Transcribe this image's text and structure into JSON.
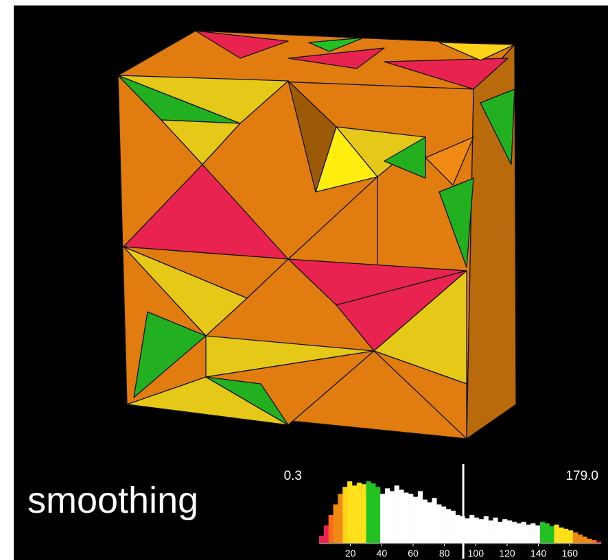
{
  "chart_data": {
    "type": "histogram",
    "annotation": "smoothing",
    "min_label": "0.3",
    "max_label": "179.0",
    "bins": [
      0,
      3,
      6,
      9,
      12,
      15,
      18,
      21,
      24,
      27,
      30,
      33,
      36,
      39,
      42,
      45,
      48,
      51,
      54,
      57,
      60,
      63,
      66,
      69,
      72,
      75,
      78,
      81,
      84,
      87,
      90,
      93,
      96,
      99,
      102,
      105,
      108,
      111,
      114,
      117,
      120,
      123,
      126,
      129,
      132,
      135,
      138,
      141,
      144,
      147,
      150,
      153,
      156,
      159,
      162,
      165,
      168,
      171,
      174,
      177,
      180
    ],
    "counts": [
      10,
      25,
      40,
      55,
      70,
      80,
      88,
      82,
      86,
      84,
      88,
      85,
      80,
      70,
      78,
      74,
      82,
      76,
      72,
      70,
      66,
      74,
      62,
      58,
      64,
      55,
      52,
      48,
      46,
      40,
      38,
      35,
      40,
      36,
      34,
      38,
      32,
      36,
      30,
      34,
      32,
      30,
      28,
      30,
      26,
      28,
      25,
      30,
      28,
      24,
      26,
      22,
      20,
      18,
      15,
      12,
      9,
      6,
      4,
      2
    ],
    "colors": [
      "#e8234f",
      "#e8234f",
      "#ff6a1a",
      "#f08a12",
      "#f08a12",
      "#ffd21a",
      "#ffe01a",
      "#ffe01a",
      "#ffe01a",
      "#ffe01a",
      "#22c222",
      "#22c222",
      "#22c222",
      "#ffffff",
      "#ffffff",
      "#ffffff",
      "#ffffff",
      "#ffffff",
      "#ffffff",
      "#ffffff",
      "#ffffff",
      "#ffffff",
      "#ffffff",
      "#ffffff",
      "#ffffff",
      "#ffffff",
      "#ffffff",
      "#ffffff",
      "#ffffff",
      "#ffffff",
      "#ffffff",
      "#ffffff",
      "#ffffff",
      "#ffffff",
      "#ffffff",
      "#ffffff",
      "#ffffff",
      "#ffffff",
      "#ffffff",
      "#ffffff",
      "#ffffff",
      "#ffffff",
      "#ffffff",
      "#ffffff",
      "#ffffff",
      "#ffffff",
      "#ffffff",
      "#22c222",
      "#22c222",
      "#22c222",
      "#ffe01a",
      "#ffe01a",
      "#ffe01a",
      "#ffe01a",
      "#f08a12",
      "#f08a12",
      "#f08a12",
      "#f08a12",
      "#ff6a1a",
      "#e8234f"
    ],
    "reference_line": 92,
    "xlim": [
      0,
      180
    ],
    "xticks": [
      20,
      40,
      60,
      80,
      100,
      120,
      140,
      160
    ],
    "ylim": [
      0,
      100
    ]
  }
}
